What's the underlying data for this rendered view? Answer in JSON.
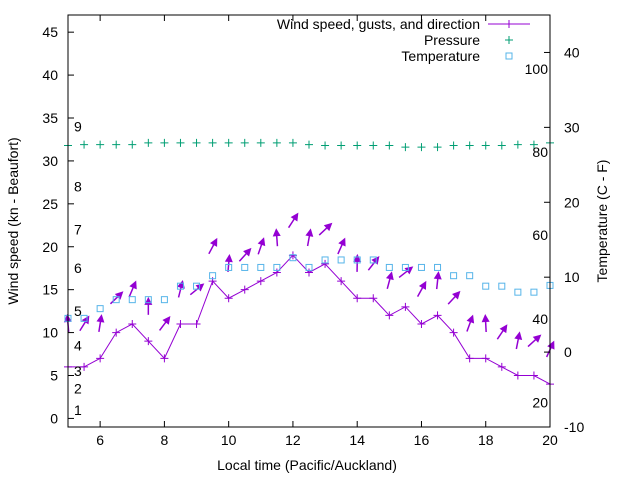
{
  "chart_data": {
    "type": "line",
    "title": "",
    "xlabel": "Local time (Pacific/Auckland)",
    "ylabel": "Wind speed (kn - Beaufort)",
    "y2label": "Temperature (C - F)",
    "xlim": [
      5,
      20
    ],
    "ylim": [
      -1,
      47
    ],
    "y2lim": [
      -10,
      45
    ],
    "x_ticks": [
      6,
      8,
      10,
      12,
      14,
      16,
      18,
      20
    ],
    "y_ticks": [
      0,
      5,
      10,
      15,
      20,
      25,
      30,
      35,
      40,
      45
    ],
    "y2_ticks": [
      -10,
      0,
      10,
      20,
      30,
      40
    ],
    "beaufort_labels": [
      {
        "text": "1",
        "y": 1
      },
      {
        "text": "2",
        "y": 3.5
      },
      {
        "text": "3",
        "y": 5.5
      },
      {
        "text": "4",
        "y": 8.5
      },
      {
        "text": "5",
        "y": 12.5
      },
      {
        "text": "6",
        "y": 17.5
      },
      {
        "text": "7",
        "y": 22
      },
      {
        "text": "8",
        "y": 27
      },
      {
        "text": "9",
        "y": 34
      }
    ],
    "fahrenheit_labels": [
      {
        "text": "20",
        "y": -6.7
      },
      {
        "text": "40",
        "y": 4.4
      },
      {
        "text": "60",
        "y": 15.6
      },
      {
        "text": "80",
        "y": 26.7
      },
      {
        "text": "100",
        "y": 37.8
      }
    ],
    "legend": {
      "placement": "top-right",
      "entries": [
        "Wind speed, gusts, and direction",
        "Pressure",
        "Temperature"
      ]
    },
    "series": [
      {
        "name": "Wind speed, gusts, and direction",
        "color": "#9400d3",
        "x": [
          5,
          5.5,
          6,
          6.5,
          7,
          7.5,
          8,
          8.5,
          9,
          9.5,
          10,
          10.5,
          11,
          11.5,
          12,
          12.5,
          13,
          13.5,
          14,
          14.5,
          15,
          15.5,
          16,
          16.5,
          17,
          17.5,
          18,
          18.5,
          19,
          19.5,
          20
        ],
        "values": [
          6,
          6,
          7,
          10,
          11,
          9,
          7,
          11,
          11,
          16,
          14,
          15,
          16,
          17,
          19,
          17,
          18,
          16,
          14,
          14,
          12,
          13,
          11,
          12,
          10,
          7,
          7,
          6,
          5,
          5,
          4
        ],
        "gusts": [
          11,
          11,
          11,
          14,
          15,
          13,
          11,
          15,
          15,
          20,
          18,
          19,
          20,
          21,
          23,
          21,
          22,
          20,
          18,
          18,
          16,
          17,
          15,
          16,
          14,
          11,
          11,
          10,
          9,
          9,
          8
        ]
      },
      {
        "name": "Pressure",
        "color": "#009e73",
        "x": [
          5,
          5.5,
          6,
          6.5,
          7,
          7.5,
          8,
          8.5,
          9,
          9.5,
          10,
          10.5,
          11,
          11.5,
          12,
          12.5,
          13,
          13.5,
          14,
          14.5,
          15,
          15.5,
          16,
          16.5,
          17,
          17.5,
          18,
          18.5,
          19,
          19.5,
          20
        ],
        "values": [
          31.8,
          31.9,
          31.9,
          31.9,
          31.9,
          32.1,
          32.1,
          32.1,
          32.1,
          32.1,
          32.1,
          32.1,
          32.1,
          32.1,
          32.1,
          31.9,
          31.8,
          31.8,
          31.8,
          31.8,
          31.8,
          31.6,
          31.6,
          31.6,
          31.8,
          31.8,
          31.8,
          31.8,
          31.9,
          31.9,
          32.1
        ]
      },
      {
        "name": "Temperature",
        "color": "#56b4e9",
        "axis": "right",
        "x": [
          5,
          5.5,
          6,
          6.5,
          7,
          7.5,
          8,
          8.5,
          9,
          9.5,
          10,
          10.5,
          11,
          11.5,
          12,
          12.5,
          13,
          13.5,
          14,
          14.5,
          15,
          15.5,
          16,
          16.5,
          17,
          17.5,
          18,
          18.5,
          19,
          19.5,
          20
        ],
        "values": [
          4.5,
          4.5,
          5.8,
          7,
          7,
          7,
          7,
          8.8,
          8.8,
          10.2,
          11.3,
          11.3,
          11.3,
          11.3,
          12.6,
          11.3,
          12.3,
          12.3,
          12.3,
          12.3,
          11.3,
          11.3,
          11.3,
          11.3,
          10.2,
          10.2,
          8.8,
          8.8,
          8,
          8,
          8.9
        ]
      }
    ]
  }
}
